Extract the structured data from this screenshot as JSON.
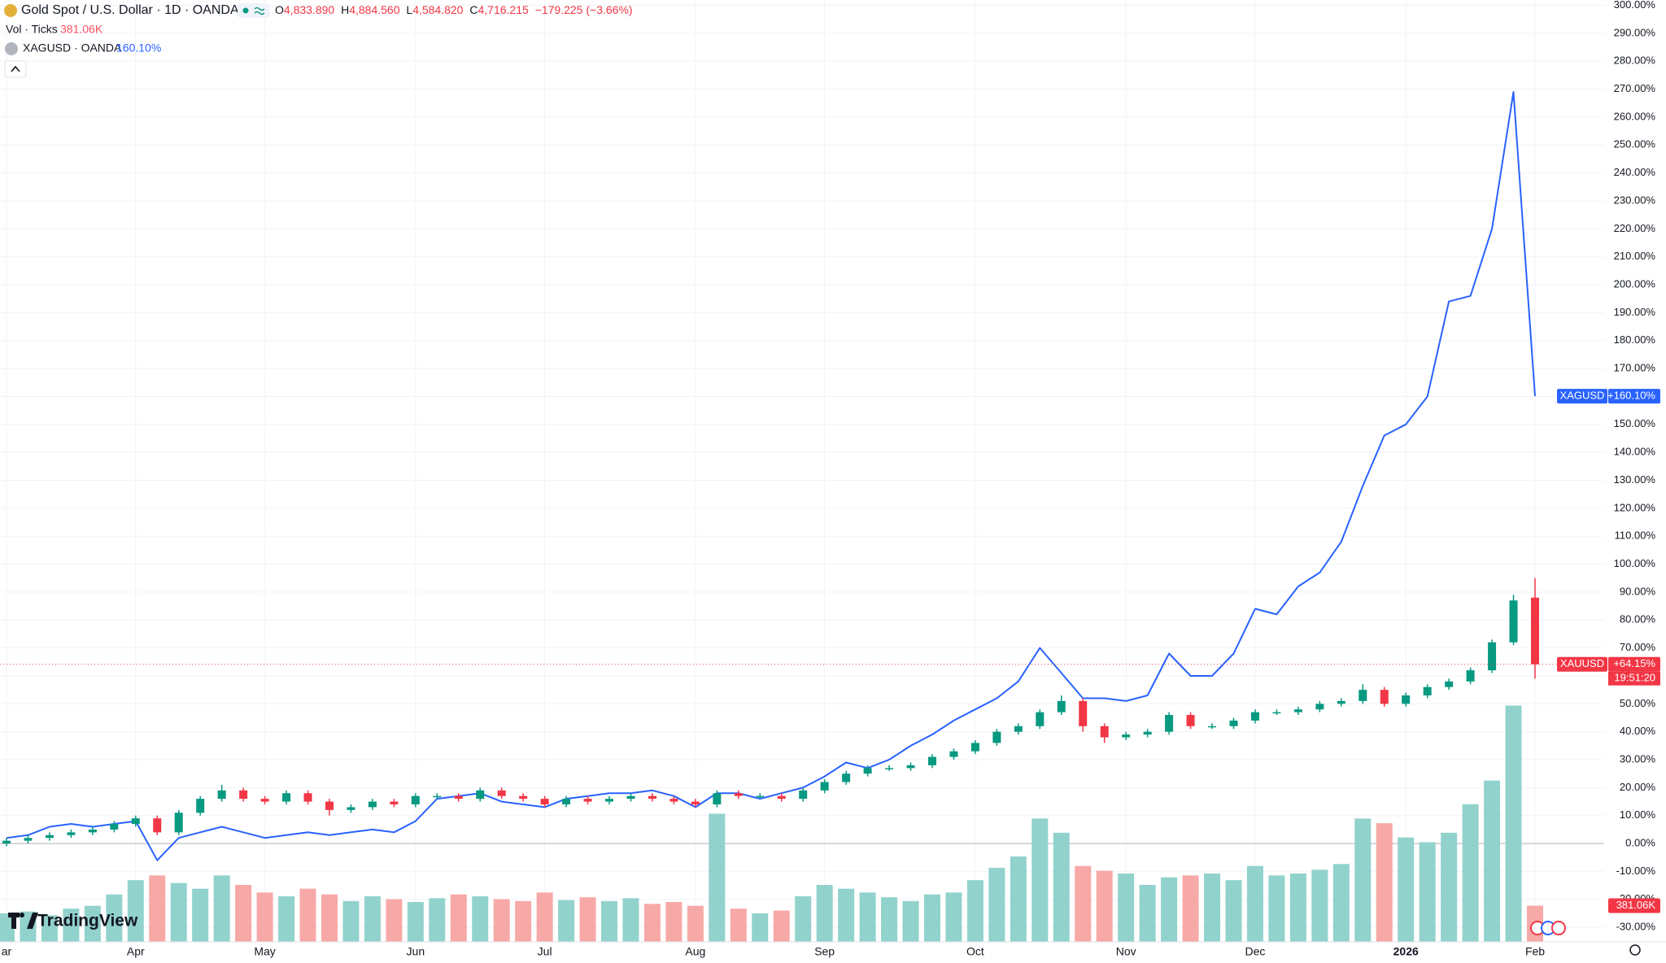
{
  "header": {
    "title": "Gold Spot / U.S. Dollar · 1D · OANDA",
    "ohlc": [
      {
        "key": "O",
        "value": "4,833.890"
      },
      {
        "key": "H",
        "value": "4,884.560"
      },
      {
        "key": "L",
        "value": "4,584.820"
      },
      {
        "key": "C",
        "value": "4,716.215"
      }
    ],
    "change": "−179.225 (−3.66%)",
    "volume_name": "Vol · Ticks",
    "volume_value": "381.06K",
    "compare_name": "XAGUSD · OANDA",
    "compare_value": "160.10%"
  },
  "logo": "TradingView",
  "chart_data": {
    "type": "candlestick",
    "categories": [
      "ar",
      null,
      null,
      null,
      null,
      null,
      "Apr",
      null,
      null,
      null,
      null,
      null,
      "May",
      null,
      null,
      null,
      null,
      null,
      null,
      "Jun",
      null,
      null,
      null,
      null,
      null,
      "Jul",
      null,
      null,
      null,
      null,
      null,
      null,
      "Aug",
      null,
      null,
      null,
      null,
      null,
      "Sep",
      null,
      null,
      null,
      null,
      null,
      null,
      "Oct",
      null,
      null,
      null,
      null,
      null,
      null,
      "Nov",
      null,
      null,
      null,
      null,
      null,
      "Dec",
      null,
      null,
      null,
      null,
      null,
      null,
      "2026",
      null,
      null,
      null,
      null,
      null,
      "Feb"
    ],
    "ylim": [
      -35.2,
      301.9
    ],
    "yticks": [
      {
        "value": -30,
        "label": "-30.00%"
      },
      {
        "value": -20,
        "label": "-20.00%"
      },
      {
        "value": -10,
        "label": "-10.00%"
      },
      {
        "value": 0,
        "label": "0.00%"
      },
      {
        "value": 10,
        "label": "10.00%"
      },
      {
        "value": 20,
        "label": "20.00%"
      },
      {
        "value": 30,
        "label": "30.00%"
      },
      {
        "value": 40,
        "label": "40.00%"
      },
      {
        "value": 50,
        "label": "50.00%"
      },
      {
        "value": 60,
        "label": "60.00%"
      },
      {
        "value": 70,
        "label": "70.00%"
      },
      {
        "value": 80,
        "label": "80.00%"
      },
      {
        "value": 90,
        "label": "90.00%"
      },
      {
        "value": 100,
        "label": "100.00%"
      },
      {
        "value": 110,
        "label": "110.00%"
      },
      {
        "value": 120,
        "label": "120.00%"
      },
      {
        "value": 130,
        "label": "130.00%"
      },
      {
        "value": 140,
        "label": "140.00%"
      },
      {
        "value": 150,
        "label": "150.00%"
      },
      {
        "value": 160,
        "label": "160.00%"
      },
      {
        "value": 170,
        "label": "170.00%"
      },
      {
        "value": 180,
        "label": "180.00%"
      },
      {
        "value": 190,
        "label": "190.00%"
      },
      {
        "value": 200,
        "label": "200.00%"
      },
      {
        "value": 210,
        "label": "210.00%"
      },
      {
        "value": 220,
        "label": "220.00%"
      },
      {
        "value": 230,
        "label": "230.00%"
      },
      {
        "value": 240,
        "label": "240.00%"
      },
      {
        "value": 250,
        "label": "250.00%"
      },
      {
        "value": 260,
        "label": "260.00%"
      },
      {
        "value": 270,
        "label": "270.00%"
      },
      {
        "value": 280,
        "label": "280.00%"
      },
      {
        "value": 290,
        "label": "290.00%"
      },
      {
        "value": 300,
        "label": "300.00%"
      }
    ],
    "grid": true,
    "series": [
      {
        "name": "XAUUSD",
        "type": "candlestick",
        "up_color": "#089981",
        "down_color": "#f23645",
        "open": [
          0,
          1,
          2,
          3,
          4,
          5,
          7,
          9,
          4,
          11,
          16,
          19,
          16,
          15,
          18,
          15,
          12,
          13,
          15,
          14,
          17,
          17,
          16,
          19,
          17,
          16,
          14,
          16,
          15,
          16,
          17,
          16,
          15,
          14,
          18,
          17,
          17,
          16,
          19,
          22,
          25,
          27,
          27,
          28,
          31,
          33,
          36,
          40,
          42,
          47,
          51,
          42,
          38,
          39,
          40,
          46,
          42,
          42,
          44,
          47,
          47,
          48,
          50,
          51,
          55,
          50,
          53,
          56,
          58,
          62,
          72,
          88
        ],
        "high": [
          2,
          3,
          4,
          5,
          6,
          8,
          10,
          10,
          12,
          17,
          21,
          20,
          17,
          19,
          19,
          16,
          14,
          16,
          16,
          18,
          18,
          18,
          20,
          20,
          18,
          17,
          17,
          17,
          17,
          18,
          18,
          17,
          16,
          19,
          19,
          18,
          18,
          20,
          23,
          26,
          28,
          28,
          29,
          32,
          34,
          37,
          41,
          43,
          48,
          53,
          52,
          43,
          40,
          41,
          47,
          47,
          43,
          45,
          48,
          48,
          49,
          51,
          52,
          57,
          56,
          54,
          57,
          59,
          63,
          73,
          89,
          95
        ],
        "low": [
          -1,
          0,
          1,
          2,
          3,
          4,
          6,
          3,
          3,
          10,
          15,
          15,
          14,
          14,
          14,
          10,
          11,
          12,
          13,
          13,
          16,
          15,
          15,
          16,
          15,
          13,
          13,
          14,
          14,
          15,
          15,
          14,
          13,
          13,
          16,
          16,
          15,
          15,
          18,
          21,
          24,
          26,
          26,
          27,
          30,
          32,
          35,
          39,
          41,
          46,
          40,
          36,
          37,
          38,
          39,
          41,
          41,
          41,
          43,
          46,
          46,
          47,
          49,
          50,
          49,
          49,
          52,
          55,
          57,
          61,
          71,
          59
        ],
        "close": [
          1,
          2,
          3,
          4,
          5,
          7,
          9,
          4,
          11,
          16,
          19,
          16,
          15,
          18,
          15,
          12,
          13,
          15,
          14,
          17,
          17,
          16,
          19,
          17,
          16,
          14,
          16,
          15,
          16,
          17,
          16,
          15,
          14,
          18,
          17,
          17,
          16,
          19,
          22,
          25,
          27,
          27,
          28,
          31,
          33,
          36,
          40,
          42,
          47,
          51,
          42,
          38,
          39,
          40,
          46,
          42,
          42,
          44,
          47,
          47,
          48,
          50,
          51,
          55,
          50,
          53,
          56,
          58,
          62,
          72,
          87,
          64.15
        ]
      },
      {
        "name": "XAGUSD",
        "type": "line",
        "color": "#2962ff",
        "values": [
          2,
          3,
          6,
          7,
          6,
          7,
          8,
          -6,
          2,
          4,
          6,
          4,
          2,
          3,
          4,
          3,
          4,
          5,
          4,
          8,
          16,
          17,
          18,
          15,
          14,
          13,
          16,
          17,
          18,
          18,
          19,
          17,
          13,
          18,
          18,
          16,
          18,
          20,
          24,
          29,
          27,
          30,
          35,
          39,
          44,
          48,
          52,
          58,
          70,
          61,
          52,
          52,
          51,
          53,
          68,
          60,
          60,
          68,
          84,
          82,
          92,
          97,
          108,
          128,
          146,
          150,
          160,
          194,
          196,
          220,
          269,
          160.1
        ]
      }
    ],
    "volume": {
      "ylim": [
        0,
        3000
      ],
      "up_color": "#92d2cc",
      "down_color": "#f7a9a7",
      "values": [
        300,
        320,
        280,
        350,
        380,
        500,
        650,
        700,
        620,
        560,
        700,
        600,
        520,
        480,
        560,
        500,
        430,
        480,
        450,
        420,
        460,
        500,
        480,
        450,
        430,
        520,
        440,
        470,
        430,
        460,
        400,
        420,
        380,
        1350,
        350,
        300,
        330,
        480,
        600,
        560,
        520,
        470,
        430,
        500,
        520,
        650,
        780,
        900,
        1300,
        1150,
        800,
        750,
        720,
        600,
        680,
        700,
        720,
        650,
        800,
        700,
        720,
        760,
        820,
        1300,
        1250,
        1100,
        1050,
        1150,
        1450,
        1700,
        2490,
        381.06
      ]
    },
    "price_labels": [
      {
        "name": "XAGUSD",
        "value": 160.1,
        "label": "+160.10%",
        "color": "#2962ff"
      },
      {
        "name": "XAUUSD",
        "value": 64.15,
        "label": "+64.15%",
        "time": "19:51:20",
        "color": "#f23645"
      }
    ],
    "volume_label": {
      "value": 381.06,
      "label": "381.06K",
      "color": "#f23645"
    }
  }
}
